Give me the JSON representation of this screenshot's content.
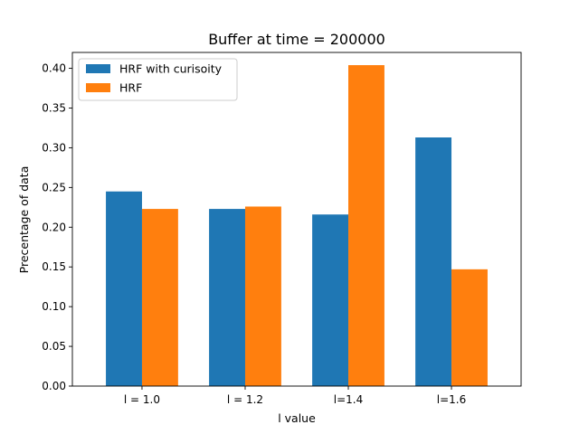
{
  "chart_data": {
    "type": "bar",
    "title": "Buffer at time = 200000",
    "xlabel": "l value",
    "ylabel": "Precentage of data",
    "categories": [
      "l = 1.0",
      "l = 1.2",
      "l=1.4",
      "l=1.6"
    ],
    "series": [
      {
        "name": "HRF with curisoity",
        "color": "#1f77b4",
        "values": [
          0.245,
          0.223,
          0.216,
          0.313
        ]
      },
      {
        "name": "HRF",
        "color": "#ff7f0e",
        "values": [
          0.223,
          0.226,
          0.404,
          0.147
        ]
      }
    ],
    "ylim": [
      0,
      0.42
    ],
    "yticks": [
      "0.00",
      "0.05",
      "0.10",
      "0.15",
      "0.20",
      "0.25",
      "0.30",
      "0.35",
      "0.40"
    ],
    "grid": false,
    "legend_position": "top-left"
  }
}
